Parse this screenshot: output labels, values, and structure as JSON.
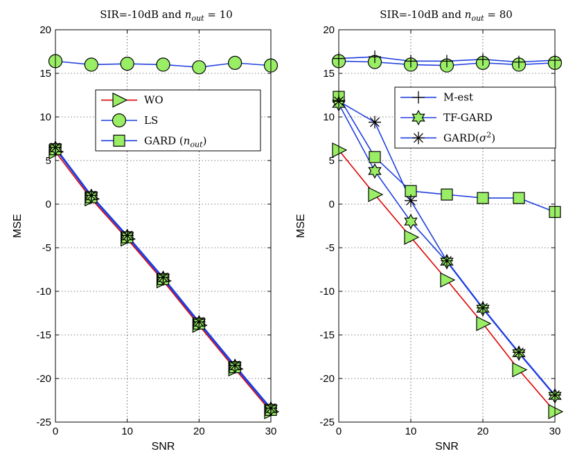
{
  "chart_data": [
    {
      "type": "line",
      "title_main": "SIR=-10dB and ",
      "title_var": "n",
      "title_sub": "out",
      "title_rest": " = 10",
      "xlabel": "SNR",
      "ylabel": "MSE",
      "xlim": [
        0,
        30
      ],
      "ylim": [
        -25,
        20
      ],
      "xticks": [
        0,
        10,
        20,
        30
      ],
      "yticks": [
        -25,
        -20,
        -15,
        -10,
        -5,
        0,
        5,
        10,
        15,
        20
      ],
      "grid": true,
      "legend_position": "upper-right",
      "x": [
        0,
        5,
        10,
        15,
        20,
        25,
        30
      ],
      "series": [
        {
          "name": "WO",
          "label": "WO",
          "color": "#dd0000",
          "marker": "triangle-right",
          "legend": true,
          "values": [
            6.0,
            0.6,
            -4.0,
            -8.8,
            -13.9,
            -18.9,
            -23.8
          ]
        },
        {
          "name": "LS",
          "label": "LS",
          "color": "#1f3fe0",
          "marker": "circle",
          "legend": true,
          "values": [
            16.4,
            16.0,
            16.1,
            16.0,
            15.7,
            16.2,
            15.9
          ]
        },
        {
          "name": "GARD (n_out)",
          "label": "GARD (",
          "label_var": "n",
          "label_sub": "out",
          "label_end": ")",
          "color": "#1f3fe0",
          "marker": "square",
          "legend": true,
          "values": [
            6.3,
            0.8,
            -3.8,
            -8.6,
            -13.7,
            -18.7,
            -23.6
          ]
        },
        {
          "name": "TF-GARD",
          "color": "#1f3fe0",
          "marker": "star6",
          "legend": false,
          "values": [
            6.4,
            0.9,
            -3.7,
            -8.5,
            -13.6,
            -18.6,
            -23.5
          ]
        },
        {
          "name": "M-est",
          "color": "#1f3fe0",
          "marker": "plus",
          "legend": false,
          "values": [
            6.5,
            1.0,
            -3.6,
            -8.4,
            -13.5,
            -18.5,
            -23.4
          ]
        },
        {
          "name": "GARD(sigma^2)",
          "color": "#1f3fe0",
          "marker": "asterisk",
          "legend": false,
          "values": [
            6.5,
            1.0,
            -3.6,
            -8.4,
            -13.5,
            -18.5,
            -23.4
          ]
        }
      ]
    },
    {
      "type": "line",
      "title_main": "SIR=-10dB and ",
      "title_var": "n",
      "title_sub": "out",
      "title_rest": " = 80",
      "xlabel": "SNR",
      "ylabel": "MSE",
      "xlim": [
        0,
        30
      ],
      "ylim": [
        -25,
        20
      ],
      "xticks": [
        0,
        10,
        20,
        30
      ],
      "yticks": [
        -25,
        -20,
        -15,
        -10,
        -5,
        0,
        5,
        10,
        15,
        20
      ],
      "grid": true,
      "legend_position": "upper-right",
      "x": [
        0,
        5,
        10,
        15,
        20,
        25,
        30
      ],
      "series": [
        {
          "name": "WO",
          "color": "#dd0000",
          "marker": "triangle-right",
          "legend": false,
          "values": [
            6.2,
            1.1,
            -3.8,
            -8.7,
            -13.7,
            -19.0,
            -23.8
          ]
        },
        {
          "name": "LS",
          "color": "#1f3fe0",
          "marker": "circle",
          "legend": false,
          "values": [
            16.4,
            16.3,
            16.0,
            15.9,
            16.2,
            16.0,
            16.2
          ]
        },
        {
          "name": "M-est",
          "label": "M-est",
          "color": "#1f3fe0",
          "marker": "plus",
          "legend": true,
          "values": [
            16.7,
            16.9,
            16.4,
            16.4,
            16.6,
            16.3,
            16.5
          ]
        },
        {
          "name": "GARD (n_out)",
          "color": "#1f3fe0",
          "marker": "square",
          "legend": false,
          "values": [
            12.3,
            5.4,
            1.5,
            1.1,
            0.7,
            0.7,
            -0.9
          ]
        },
        {
          "name": "TF-GARD",
          "label": "TF-GARD",
          "color": "#1f3fe0",
          "marker": "star6",
          "legend": true,
          "values": [
            11.5,
            3.8,
            -2.0,
            -6.6,
            -12.0,
            -17.1,
            -22.0
          ]
        },
        {
          "name": "GARD(sigma^2)",
          "label": "GARD(",
          "label_var": "σ",
          "label_sup": "2",
          "label_end": ")",
          "color": "#1f3fe0",
          "marker": "asterisk",
          "legend": true,
          "values": [
            11.8,
            9.4,
            0.4,
            -6.5,
            -11.9,
            -17.0,
            -21.9
          ]
        }
      ]
    }
  ]
}
